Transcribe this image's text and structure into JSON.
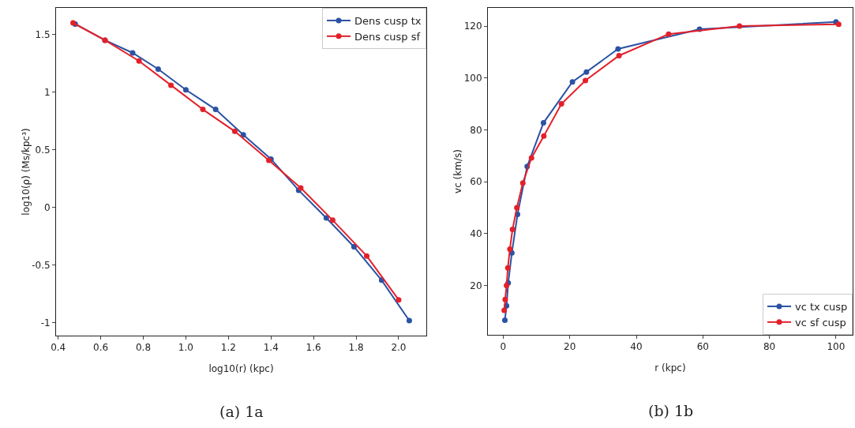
{
  "chart_data": [
    {
      "type": "line",
      "xlabel": "log10(r) (kpc)",
      "ylabel": "log10(ρ) (Ms/kpc³)",
      "annotations": [
        "(a) 1a"
      ],
      "xlim": [
        0.39,
        2.13
      ],
      "xticks": [
        {
          "value": 0.4,
          "label": "0.4"
        },
        {
          "value": 0.6,
          "label": "0.6"
        },
        {
          "value": 0.8,
          "label": "0.8"
        },
        {
          "value": 1,
          "label": "1.0"
        },
        {
          "value": 1.2,
          "label": "1.2"
        },
        {
          "value": 1.4,
          "label": "1.4"
        },
        {
          "value": 1.6,
          "label": "1.6"
        },
        {
          "value": 1.8,
          "label": "1.8"
        },
        {
          "value": 2,
          "label": "2.0"
        }
      ],
      "ylim": [
        -1.11,
        1.73
      ],
      "yticks": [
        -1,
        -0.5,
        0,
        0.5,
        1,
        1.5
      ],
      "grid": false,
      "legend": "top right",
      "marker": "circle",
      "line_style": "solid",
      "series": [
        {
          "name": "Dens cusp tx",
          "color": "#2b52a3",
          "x": [
            0.48,
            0.62,
            0.75,
            0.87,
            1.0,
            1.14,
            1.27,
            1.4,
            1.53,
            1.66,
            1.79,
            1.92,
            2.05
          ],
          "values": [
            1.59,
            1.45,
            1.34,
            1.2,
            1.02,
            0.85,
            0.63,
            0.42,
            0.15,
            -0.09,
            -0.34,
            -0.63,
            -0.98
          ]
        },
        {
          "name": "Dens cusp sf",
          "color": "#e3202a",
          "x": [
            0.47,
            0.62,
            0.78,
            0.93,
            1.08,
            1.23,
            1.39,
            1.54,
            1.69,
            1.85,
            2.0
          ],
          "values": [
            1.6,
            1.45,
            1.27,
            1.06,
            0.85,
            0.66,
            0.41,
            0.17,
            -0.11,
            -0.42,
            -0.8
          ]
        }
      ]
    },
    {
      "type": "line",
      "xlabel": "r (kpc)",
      "ylabel": "vc (km/s)",
      "annotations": [
        "(b) 1b"
      ],
      "xlim": [
        -4.6,
        105
      ],
      "xticks": [
        0,
        20,
        40,
        60,
        80,
        100
      ],
      "ylim": [
        1,
        127
      ],
      "yticks": [
        20,
        40,
        60,
        80,
        100,
        120
      ],
      "grid": false,
      "legend": "bottom right",
      "marker": "circle",
      "line_style": "solid",
      "series": [
        {
          "name": "vc tx cusp",
          "color": "#2b52a3",
          "x": [
            0.5,
            1.0,
            1.5,
            2.6,
            4.3,
            7.2,
            12.1,
            20.8,
            25,
            34.5,
            59,
            100
          ],
          "values": [
            6.6,
            12.2,
            21,
            32.6,
            47.4,
            65.9,
            82.7,
            98.5,
            102.3,
            111.2,
            118.8,
            121.6
          ]
        },
        {
          "name": "vc sf cusp",
          "color": "#e3202a",
          "x": [
            0.3,
            0.6,
            1.0,
            1.4,
            2.0,
            2.8,
            4.1,
            5.9,
            8.5,
            12.2,
            17.5,
            24.7,
            34.8,
            49.7,
            71,
            100.8
          ],
          "values": [
            10.4,
            14.6,
            20,
            26.8,
            34,
            41.6,
            50,
            59.5,
            69.2,
            77.6,
            90,
            99,
            108.6,
            116.9,
            120,
            120.7
          ]
        }
      ]
    }
  ]
}
